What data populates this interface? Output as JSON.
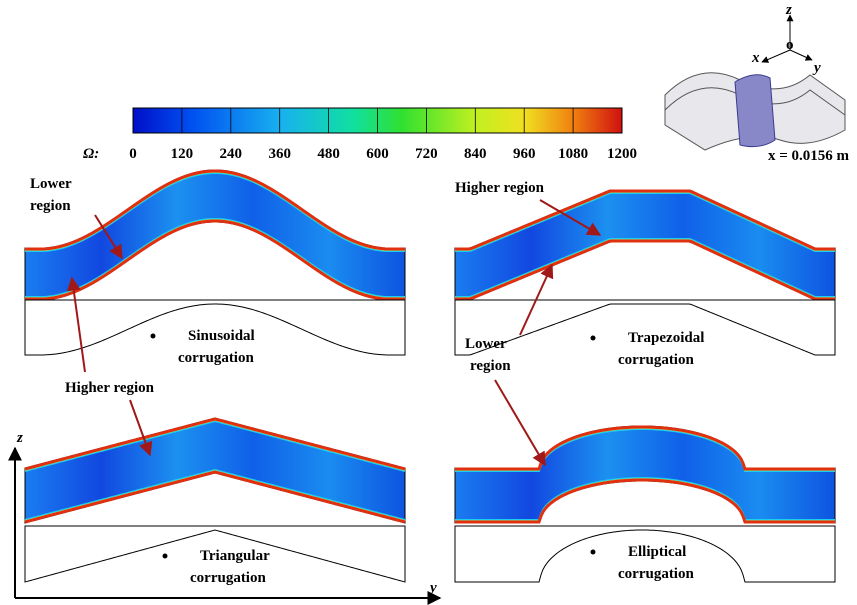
{
  "colorbar": {
    "label": "Ω:",
    "range": [
      0,
      1200
    ],
    "ticks": [
      0,
      120,
      240,
      360,
      480,
      600,
      720,
      840,
      960,
      1080,
      1200
    ]
  },
  "inset": {
    "axes": {
      "z": "z",
      "o": "o",
      "x": "x",
      "y": "y"
    },
    "plane_label": "x = 0.0156 m"
  },
  "annotations": [
    {
      "lines": [
        "Lower",
        "region"
      ]
    },
    {
      "lines": [
        "Higher region"
      ]
    },
    {
      "lines": [
        "Higher region"
      ]
    },
    {
      "lines": [
        "Lower",
        "region"
      ]
    }
  ],
  "panels": [
    {
      "label": [
        "Sinusoidal",
        "corrugation"
      ]
    },
    {
      "label": [
        "Trapezoidal",
        "corrugation"
      ]
    },
    {
      "label": [
        "Triangular",
        "corrugation"
      ]
    },
    {
      "label": [
        "Elliptical",
        "corrugation"
      ]
    }
  ],
  "axes": {
    "z": "z",
    "y": "y"
  }
}
